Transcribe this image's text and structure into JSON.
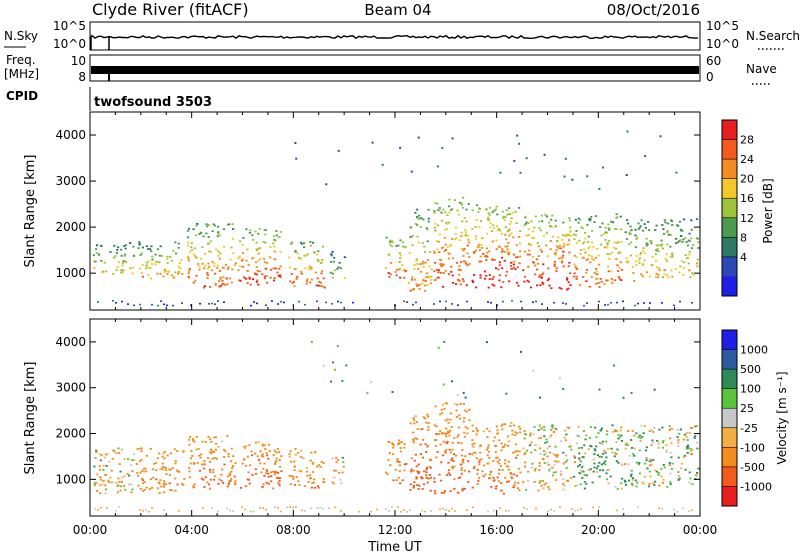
{
  "header": {
    "station": "Clyde River (fitACF)",
    "beam": "Beam 04",
    "date": "08/Oct/2016"
  },
  "strips": {
    "nsky_label": "N.Sky",
    "nsky_ticks": [
      "10^5",
      "10^0"
    ],
    "nsearch_label": "N.Search",
    "nsearch_ticks": [
      "10^5",
      "10^0"
    ],
    "freq_label_1": "Freq.",
    "freq_label_2": "[MHz]",
    "freq_ticks": [
      "10",
      "8"
    ],
    "nave_label": "Nave",
    "nave_ticks": [
      "60",
      "0"
    ],
    "cpid_label": "CPID",
    "cpid_value": "twofsound 3503"
  },
  "colors": {
    "power_scale": [
      "#1e1ee6",
      "#2d48b4",
      "#2e7a64",
      "#4a9a50",
      "#9ec43c",
      "#f2c82a",
      "#f28c1e",
      "#f25a1e",
      "#e61e1e"
    ],
    "velocity_scale": [
      "#e61e1e",
      "#f25a1e",
      "#f28c1e",
      "#f2b042",
      "#c8c8c8",
      "#5cc43c",
      "#2e8a58",
      "#2e5aa0",
      "#1e1ee6"
    ]
  },
  "power_colorbar": {
    "label": "Power [dB]",
    "ticks": [
      "28",
      "24",
      "20",
      "16",
      "12",
      "8",
      "4"
    ]
  },
  "velocity_colorbar": {
    "label": "Velocity [m s⁻¹]",
    "ticks": [
      "1000",
      "500",
      "100",
      "25",
      "-25",
      "-100",
      "-500",
      "-1000"
    ]
  },
  "chart_data": [
    {
      "type": "heatmap",
      "name": "power",
      "ylabel": "Slant Range [km]",
      "ylim": [
        200,
        4500
      ],
      "y_ticks": [
        1000,
        2000,
        3000,
        4000
      ],
      "xlim_hours": [
        0,
        24
      ],
      "band_start_hours": [
        0.1,
        1.8,
        3.8,
        5.8,
        7.8,
        9.4,
        11.6,
        12.5,
        13.5,
        15.0,
        17.0,
        19.0,
        21.0,
        23.0
      ],
      "band_end_hours": [
        1.7,
        3.7,
        5.7,
        7.5,
        9.2,
        10.0,
        12.4,
        13.4,
        14.9,
        16.9,
        18.9,
        20.9,
        22.9,
        23.9
      ],
      "band_low_km": [
        1000,
        900,
        700,
        750,
        700,
        900,
        900,
        600,
        700,
        700,
        650,
        700,
        850,
        900
      ],
      "band_high_km": [
        1700,
        1700,
        2100,
        2000,
        1700,
        1500,
        1900,
        2400,
        2700,
        2500,
        2300,
        2300,
        2200,
        2200
      ],
      "band_power_db": [
        18,
        20,
        24,
        26,
        24,
        14,
        24,
        22,
        26,
        28,
        28,
        24,
        20,
        18
      ]
    },
    {
      "type": "heatmap",
      "name": "velocity",
      "xlabel": "Time UT",
      "x_tick_labels": [
        "00:00",
        "04:00",
        "08:00",
        "12:00",
        "16:00",
        "20:00",
        "00:00"
      ],
      "ylabel": "Slant Range [km]",
      "ylim": [
        200,
        4500
      ],
      "y_ticks": [
        1000,
        2000,
        3000,
        4000
      ],
      "xlim_hours": [
        0,
        24
      ],
      "band_start_hours": [
        0.1,
        1.8,
        3.8,
        5.8,
        7.8,
        9.4,
        11.6,
        12.5,
        13.5,
        15.0,
        17.0,
        19.0,
        21.0,
        23.0
      ],
      "band_end_hours": [
        1.7,
        3.7,
        5.7,
        7.5,
        9.2,
        10.0,
        12.4,
        13.4,
        14.9,
        16.9,
        18.9,
        20.9,
        22.9,
        23.9
      ],
      "band_low_km": [
        700,
        700,
        800,
        800,
        800,
        900,
        900,
        700,
        700,
        700,
        750,
        800,
        850,
        900
      ],
      "band_high_km": [
        1700,
        1700,
        2000,
        1900,
        1700,
        1500,
        1900,
        2500,
        2700,
        2300,
        2200,
        2200,
        2200,
        2200
      ],
      "band_velocity_ms": [
        -100,
        -300,
        -400,
        -500,
        -300,
        -100,
        -500,
        -600,
        -500,
        -400,
        -100,
        100,
        25,
        100
      ]
    }
  ]
}
